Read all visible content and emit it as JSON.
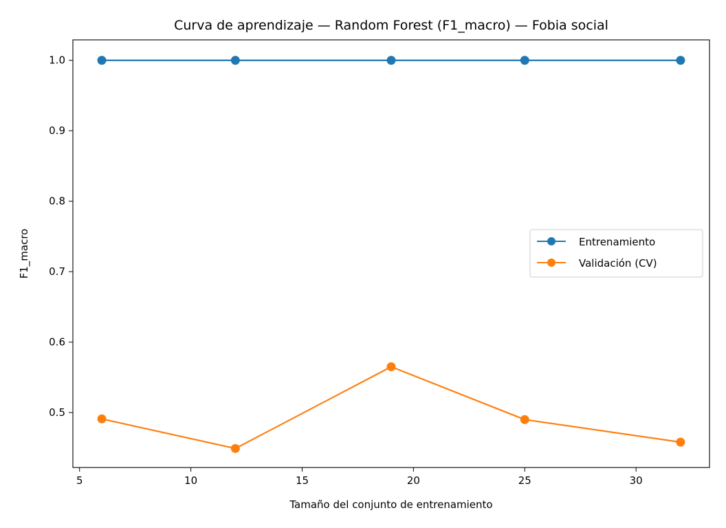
{
  "chart_data": {
    "type": "line",
    "title": "Curva de aprendizaje — Random Forest (F1_macro) — Fobia social",
    "xlabel": "Tamaño del conjunto de entrenamiento",
    "ylabel": "F1_macro",
    "xlim": [
      4.7,
      33.3
    ],
    "ylim": [
      0.422,
      1.029
    ],
    "xticks": [
      5,
      10,
      15,
      20,
      25,
      30
    ],
    "yticks": [
      0.5,
      0.6,
      0.7,
      0.8,
      0.9,
      1.0
    ],
    "xtick_labels": [
      "5",
      "10",
      "15",
      "20",
      "25",
      "30"
    ],
    "ytick_labels": [
      "0.5",
      "0.6",
      "0.7",
      "0.8",
      "0.9",
      "1.0"
    ],
    "x": [
      6,
      12,
      19,
      25,
      32
    ],
    "series": [
      {
        "name": "Entrenamiento",
        "color": "#1f77b4",
        "values": [
          1.0,
          1.0,
          1.0,
          1.0,
          1.0
        ]
      },
      {
        "name": "Validación (CV)",
        "color": "#ff7f0e",
        "values": [
          0.491,
          0.449,
          0.565,
          0.49,
          0.458
        ]
      }
    ],
    "legend_position": "center-right",
    "grid": false
  }
}
